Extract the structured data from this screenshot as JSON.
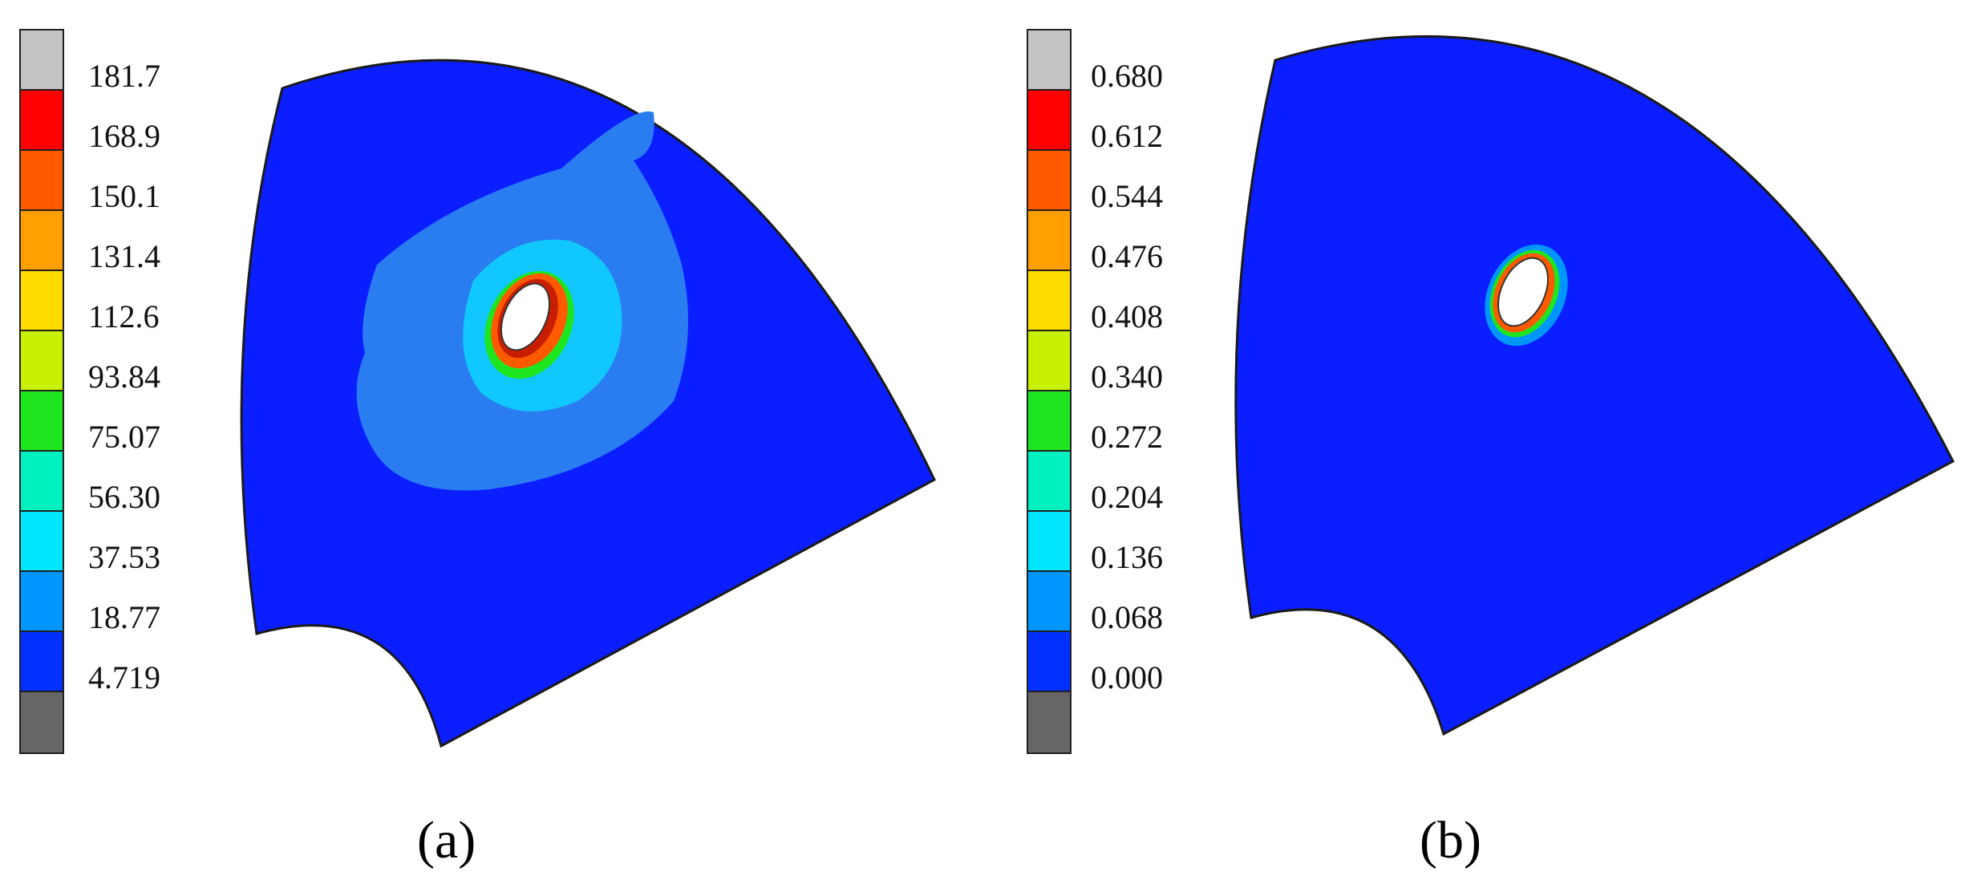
{
  "panels": [
    {
      "id": "a",
      "caption": "(a)",
      "legend": {
        "labels": [
          "181.7",
          "168.9",
          "150.1",
          "131.4",
          "112.6",
          "93.84",
          "75.07",
          "56.30",
          "37.53",
          "18.77",
          "4.719"
        ],
        "colors": [
          "#c4c4c4",
          "#ff0000",
          "#ff5a00",
          "#ffa000",
          "#ffdc00",
          "#c8f000",
          "#1ee61e",
          "#00f0c0",
          "#00e6ff",
          "#0096ff",
          "#0030ff",
          "#666666"
        ]
      },
      "field": {
        "background_color": "#0a1eff",
        "halo": "wide"
      }
    },
    {
      "id": "b",
      "caption": "(b)",
      "legend": {
        "labels": [
          "0.680",
          "0.612",
          "0.544",
          "0.476",
          "0.408",
          "0.340",
          "0.272",
          "0.204",
          "0.136",
          "0.068",
          "0.000"
        ],
        "colors": [
          "#c4c4c4",
          "#ff0000",
          "#ff5a00",
          "#ffa000",
          "#ffdc00",
          "#c8f000",
          "#1ee61e",
          "#00f0c0",
          "#00e6ff",
          "#0096ff",
          "#0030ff",
          "#666666"
        ]
      },
      "field": {
        "background_color": "#0a1eff",
        "halo": "narrow"
      }
    }
  ]
}
